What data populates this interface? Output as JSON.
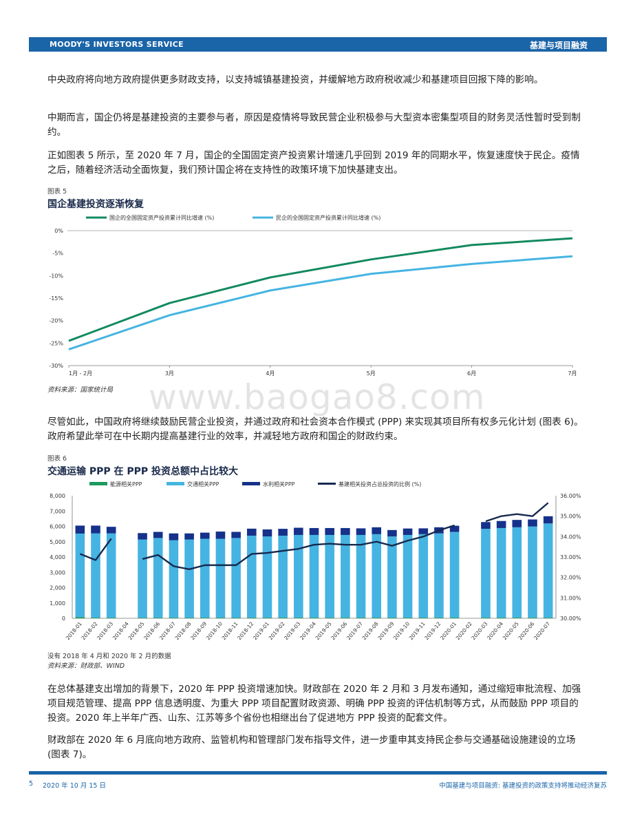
{
  "header": {
    "brand": "MOODY'S INVESTORS SERVICE",
    "section": "基建与项目融资"
  },
  "paragraphs": [
    "中央政府将向地方政府提供更多财政支持，以支持城镇基建投资，并缓解地方政府税收减少和基建项目回报下降的影响。",
    "中期而言，国企仍将是基建投资的主要参与者，原因是疫情将导致民营企业积极参与大型资本密集型项目的财务灵活性暂时受到制约。",
    "正如图表 5 所示，至 2020 年 7 月，国企的全国固定资产投资累计增速几乎回到 2019 年的同期水平，恢复速度快于民企。疫情之后，随着经济活动全面恢复，我们预计国企将在支持性的政策环境下加快基建支出。",
    "尽管如此，中国政府将继续鼓励民营企业投资，并通过政府和社会资本合作模式 (PPP) 来实现其项目所有权多元化计划 (图表 6)。政府希望此举可在中长期内提高基建行业的效率，并减轻地方政府和国企的财政约束。",
    "在总体基建支出增加的背景下，2020 年 PPP 投资增速加快。财政部在 2020 年 2 月和 3 月发布通知，通过缩短审批流程、加强项目规范管理、提高 PPP 信息透明度、为重大 PPP 项目配置财政资源、明确 PPP 投资的评估机制等方式，从而鼓励 PPP 项目的投资。2020 年上半年广西、山东、江苏等多个省份也相继出台了促进地方 PPP 投资的配套文件。",
    "财政部在 2020 年 6 月底向地方政府、监管机构和管理部门发布指导文件，进一步重申其支持民企参与交通基础设施建设的立场 (图表 7)。"
  ],
  "watermark": "www.baogao8.com",
  "fig5": {
    "label": "图表 5",
    "title": "国企基建投资逐渐恢复",
    "source": "资料来源：国家统计局"
  },
  "fig6": {
    "label": "图表 6",
    "title": "交通运输 PPP 在 PPP 投资总额中占比较大",
    "note": "没有 2018 年 4 月和 2020 年 2 月的数据",
    "source": "资料来源：财政部、WIND"
  },
  "colors": {
    "brand_blue": "#1a64a8",
    "soe_green": "#128a5e",
    "private_blue": "#45b4e2",
    "energy_green": "#1a9a5c",
    "transport_blue": "#45b4e2",
    "water_navy": "#15318a",
    "ratio_navy": "#17294f"
  },
  "chart_data": [
    {
      "type": "line",
      "categories": [
        "1月 - 2月",
        "3月",
        "4月",
        "5月",
        "6月",
        "7月"
      ],
      "series": [
        {
          "name": "国企的全国固定资产投资累计同比增速 (%)",
          "values": [
            -24.5,
            -16.1,
            -10.4,
            -6.4,
            -3.2,
            -1.7
          ]
        },
        {
          "name": "民企的全国固定资产投资累计同比增速 (%)",
          "values": [
            -26.4,
            -18.8,
            -13.3,
            -9.6,
            -7.4,
            -5.7
          ]
        }
      ],
      "ylim": [
        -30,
        0
      ],
      "yticks": [
        "0%",
        "-5%",
        "-10%",
        "-15%",
        "-20%",
        "-25%",
        "-30%"
      ],
      "legend": "top",
      "grid": false
    },
    {
      "type": "bar",
      "stacked": true,
      "categories": [
        "2018-01",
        "2018-02",
        "2018-03",
        "2018-04",
        "2018-05",
        "2018-06",
        "2018-07",
        "2018-08",
        "2018-09",
        "2018-10",
        "2018-11",
        "2018-12",
        "2019-01",
        "2019-02",
        "2019-03",
        "2019-04",
        "2019-05",
        "2019-06",
        "2019-07",
        "2019-08",
        "2019-09",
        "2019-10",
        "2019-11",
        "2019-12",
        "2020-01",
        "2020-02",
        "2020-03",
        "2020-04",
        "2020-05",
        "2020-06",
        "2020-07"
      ],
      "series": [
        {
          "name": "能源相关PPP",
          "values": [
            80,
            40,
            40,
            null,
            40,
            40,
            40,
            40,
            40,
            40,
            40,
            40,
            40,
            40,
            40,
            40,
            40,
            40,
            40,
            40,
            40,
            40,
            40,
            40,
            40,
            null,
            40,
            40,
            40,
            40,
            40
          ]
        },
        {
          "name": "交通相关PPP",
          "values": [
            5450,
            5500,
            5500,
            null,
            5100,
            5200,
            5050,
            5100,
            5150,
            5150,
            5200,
            5350,
            5300,
            5350,
            5400,
            5400,
            5400,
            5400,
            5400,
            5450,
            5300,
            5400,
            5450,
            5500,
            5600,
            null,
            5800,
            5850,
            5900,
            5950,
            6150
          ]
        },
        {
          "name": "水利相关PPP",
          "values": [
            520,
            510,
            430,
            null,
            420,
            400,
            450,
            400,
            400,
            470,
            400,
            460,
            460,
            450,
            470,
            450,
            450,
            450,
            430,
            450,
            420,
            420,
            380,
            400,
            400,
            null,
            440,
            460,
            480,
            460,
            470
          ]
        },
        {
          "name": "基建相关投资占总投资的比例 (%)",
          "axis": "right",
          "chart": "line",
          "values": [
            33.15,
            32.85,
            33.9,
            null,
            32.9,
            33.1,
            32.55,
            32.4,
            32.6,
            32.6,
            32.6,
            33.15,
            33.2,
            33.3,
            33.4,
            33.6,
            33.65,
            33.6,
            33.6,
            33.75,
            33.55,
            33.8,
            34.0,
            34.3,
            34.55,
            null,
            34.75,
            35.0,
            35.1,
            35.0,
            35.65
          ]
        }
      ],
      "ylim": [
        0,
        8000
      ],
      "y2lim": [
        30.0,
        36.0
      ],
      "yticks": [
        "0",
        "1,000",
        "2,000",
        "3,000",
        "4,000",
        "5,000",
        "6,000",
        "7,000",
        "8,000"
      ],
      "y2ticks": [
        "30.00%",
        "31.00%",
        "32.00%",
        "33.00%",
        "34.00%",
        "35.00%",
        "36.00%"
      ],
      "legend": "top",
      "grid": false
    }
  ],
  "footer": {
    "page": "5",
    "date": "2020 年 10 月 15 日",
    "doc_title": "中国基建与项目融资: 基建投资的政策支持将推动经济复苏"
  }
}
